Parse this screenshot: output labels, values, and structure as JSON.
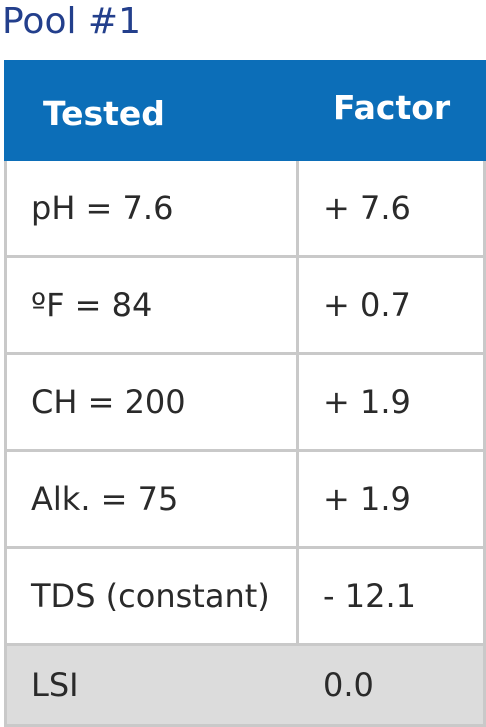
{
  "title": "Pool #1",
  "table": {
    "headers": [
      "Tested",
      "Factor"
    ],
    "rows": [
      {
        "tested": "pH = 7.6",
        "factor": "+ 7.6"
      },
      {
        "tested": "ºF = 84",
        "factor": "+ 0.7"
      },
      {
        "tested": "CH = 200",
        "factor": "+ 1.9"
      },
      {
        "tested": "Alk. = 75",
        "factor": "+ 1.9"
      },
      {
        "tested": "TDS (constant)",
        "factor": "- 12.1"
      }
    ],
    "total": {
      "label": "LSI",
      "value": "0.0"
    }
  },
  "colors": {
    "title": "#233f8c",
    "header_background": "#0c6eb8",
    "total_background": "#dcdcdc"
  }
}
